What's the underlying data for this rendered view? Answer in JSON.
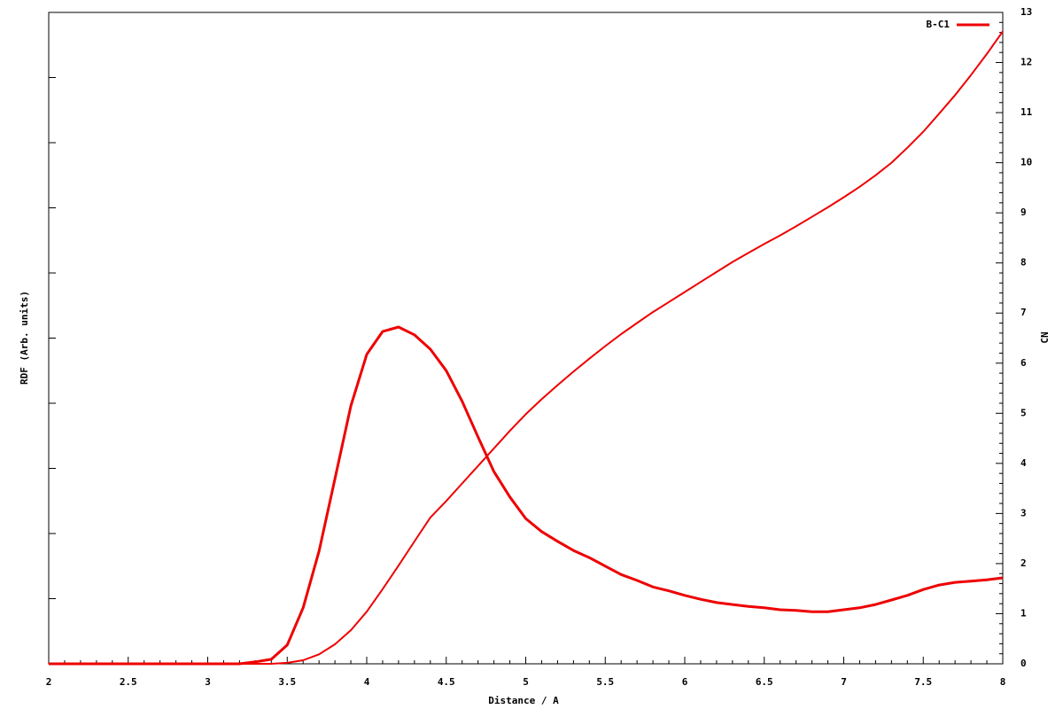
{
  "chart_data": {
    "type": "line",
    "xlabel": "Distance / A",
    "ylabel": "RDF (Arb. units)",
    "y2label": "CN",
    "x": [
      2.0,
      2.1,
      2.2,
      2.3,
      2.4,
      2.5,
      2.6,
      2.7,
      2.8,
      2.9,
      3.0,
      3.1,
      3.2,
      3.3,
      3.4,
      3.5,
      3.6,
      3.7,
      3.8,
      3.9,
      4.0,
      4.1,
      4.2,
      4.3,
      4.4,
      4.5,
      4.6,
      4.7,
      4.8,
      4.9,
      5.0,
      5.1,
      5.2,
      5.3,
      5.4,
      5.5,
      5.6,
      5.7,
      5.8,
      5.9,
      6.0,
      6.1,
      6.2,
      6.3,
      6.4,
      6.5,
      6.6,
      6.7,
      6.8,
      6.9,
      7.0,
      7.1,
      7.2,
      7.3,
      7.4,
      7.5,
      7.6,
      7.7,
      7.8,
      7.9,
      8.0
    ],
    "series": [
      {
        "name": "B-C1",
        "color": "#ee0000",
        "axis": "y",
        "values": [
          0,
          0,
          0,
          0,
          0,
          0,
          0,
          0,
          0,
          0,
          0,
          0,
          0,
          0.03,
          0.07,
          0.29,
          0.86,
          1.73,
          2.84,
          3.96,
          4.75,
          5.1,
          5.17,
          5.05,
          4.83,
          4.5,
          4.03,
          3.48,
          2.95,
          2.56,
          2.23,
          2.03,
          1.88,
          1.74,
          1.63,
          1.5,
          1.37,
          1.28,
          1.18,
          1.12,
          1.05,
          0.99,
          0.94,
          0.91,
          0.88,
          0.86,
          0.83,
          0.82,
          0.8,
          0.8,
          0.83,
          0.86,
          0.91,
          0.98,
          1.05,
          1.14,
          1.21,
          1.25,
          1.27,
          1.29,
          1.32
        ]
      },
      {
        "color": "#ee0000",
        "axis": "y2",
        "values": [
          0,
          0,
          0,
          0,
          0,
          0,
          0,
          0,
          0,
          0,
          0,
          0,
          0,
          0,
          0,
          0.02,
          0.07,
          0.19,
          0.39,
          0.67,
          1.04,
          1.49,
          1.96,
          2.44,
          2.92,
          3.25,
          3.6,
          3.95,
          4.3,
          4.65,
          4.98,
          5.28,
          5.56,
          5.83,
          6.09,
          6.34,
          6.58,
          6.8,
          7.02,
          7.22,
          7.42,
          7.62,
          7.82,
          8.02,
          8.2,
          8.38,
          8.55,
          8.73,
          8.92,
          9.11,
          9.31,
          9.52,
          9.75,
          10.0,
          10.3,
          10.62,
          10.98,
          11.35,
          11.75,
          12.17,
          12.62
        ]
      }
    ],
    "xlim": [
      2,
      8
    ],
    "xticks": [
      2,
      2.5,
      3,
      3.5,
      4,
      4.5,
      5,
      5.5,
      6,
      6.5,
      7,
      7.5,
      8
    ],
    "ylim": [
      0,
      10
    ],
    "yticks": [
      0,
      1,
      2,
      3,
      4,
      5,
      6,
      7,
      8,
      9,
      10
    ],
    "y_tick_labels": false,
    "y2lim": [
      0,
      13
    ],
    "y2ticks": [
      0,
      1,
      2,
      3,
      4,
      5,
      6,
      7,
      8,
      9,
      10,
      11,
      12,
      13
    ],
    "legend": "top-right"
  }
}
